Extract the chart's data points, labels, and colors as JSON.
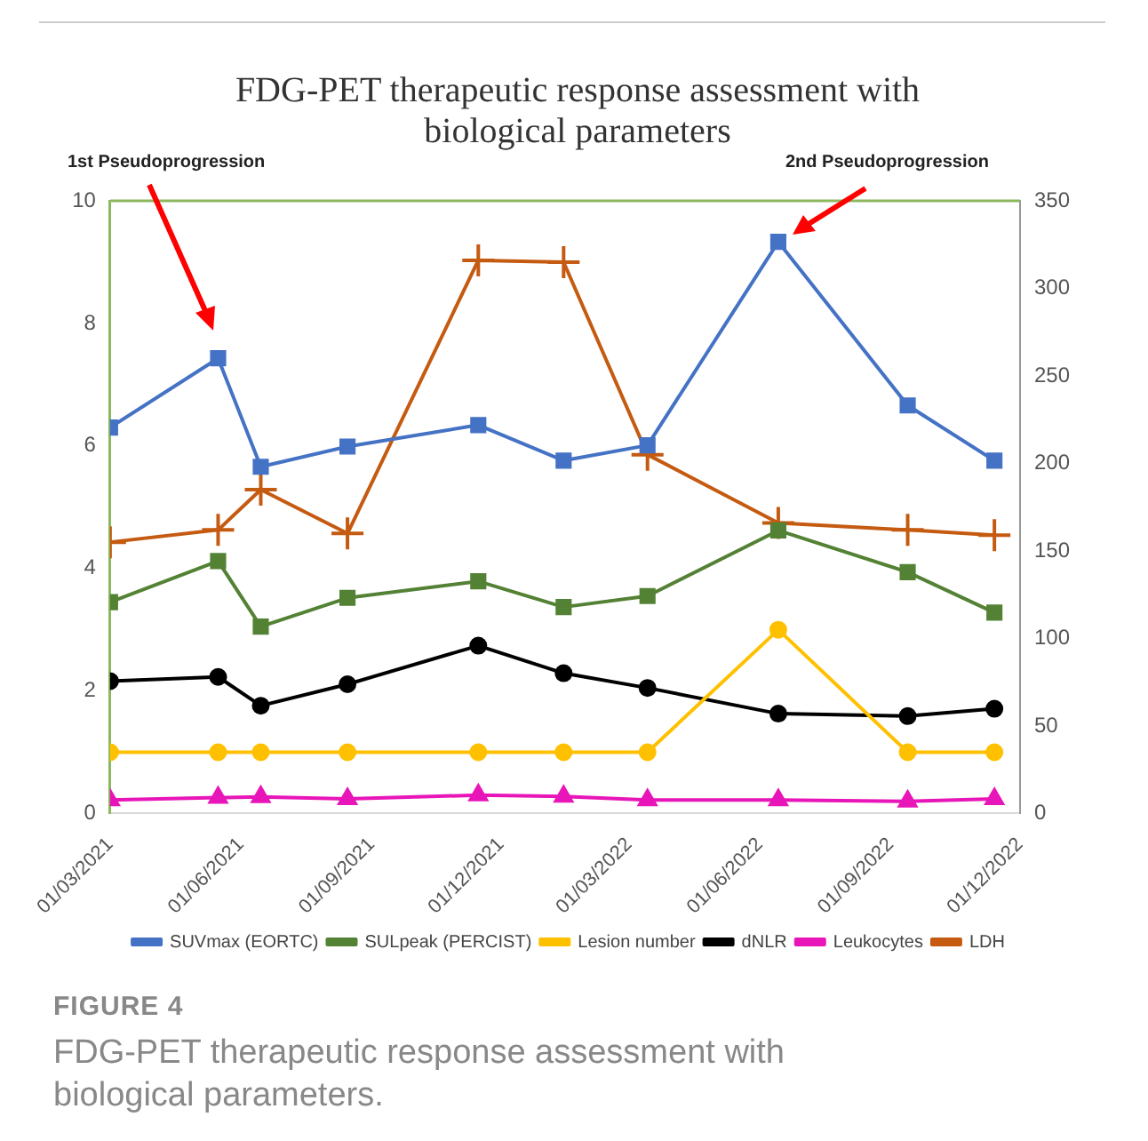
{
  "chart_data": {
    "type": "line",
    "title": "FDG-PET therapeutic response assessment with biological parameters",
    "x": [
      "2021-03-01",
      "2021-05-16",
      "2021-06-15",
      "2021-08-15",
      "2021-11-15",
      "2022-01-14",
      "2022-03-14",
      "2022-06-14",
      "2022-09-13",
      "2022-11-13"
    ],
    "xlim": [
      "2021-03-01",
      "2022-12-01"
    ],
    "xticks": [
      {
        "value": "2021-03-01",
        "label": "01/03/2021"
      },
      {
        "value": "2021-06-01",
        "label": "01/06/2021"
      },
      {
        "value": "2021-09-01",
        "label": "01/09/2021"
      },
      {
        "value": "2021-12-01",
        "label": "01/12/2021"
      },
      {
        "value": "2022-03-01",
        "label": "01/03/2022"
      },
      {
        "value": "2022-06-01",
        "label": "01/06/2022"
      },
      {
        "value": "2022-09-01",
        "label": "01/09/2022"
      },
      {
        "value": "2022-12-01",
        "label": "01/12/2022"
      }
    ],
    "ylim": [
      0,
      10
    ],
    "yticks": [
      0,
      2,
      4,
      6,
      8,
      10
    ],
    "y2lim": [
      0,
      350
    ],
    "y2ticks": [
      0,
      50,
      100,
      150,
      200,
      250,
      300,
      350
    ],
    "series": [
      {
        "name": "SUVmax (EORTC)",
        "color": "#4472c4",
        "marker": "square",
        "values": [
          6.3,
          7.43,
          5.66,
          5.99,
          6.34,
          5.76,
          6.01,
          9.33,
          6.66,
          5.76
        ]
      },
      {
        "name": "SULpeak (PERCIST)",
        "color": "#548235",
        "marker": "square",
        "values": [
          3.45,
          4.12,
          3.05,
          3.52,
          3.79,
          3.37,
          3.55,
          4.62,
          3.94,
          3.28
        ]
      },
      {
        "name": "Lesion number",
        "color": "#ffc000",
        "marker": "circle",
        "values": [
          1,
          1,
          1,
          1,
          1,
          1,
          1,
          3,
          1,
          1
        ]
      },
      {
        "name": "dNLR",
        "color": "#000000",
        "marker": "circle",
        "values": [
          2.16,
          2.23,
          1.76,
          2.11,
          2.74,
          2.29,
          2.05,
          1.63,
          1.59,
          1.71
        ]
      },
      {
        "name": "Leukocytes",
        "color": "#e815b8",
        "marker": "triangle",
        "values": [
          0.22,
          0.26,
          0.27,
          0.24,
          0.3,
          0.28,
          0.22,
          0.22,
          0.2,
          0.24
        ]
      },
      {
        "name": "LDH",
        "color": "#c55a11",
        "marker": "cross",
        "axis": "y2",
        "values": [
          155,
          162,
          185,
          160,
          316,
          315,
          205,
          166,
          162,
          159
        ]
      }
    ],
    "annotations": [
      "1st Pseudoprogression",
      "2nd Pseudoprogression",
      "FIGURE 4",
      "FDG-PET therapeutic response assessment with biological parameters."
    ],
    "grid": false,
    "legend": "bottom"
  }
}
